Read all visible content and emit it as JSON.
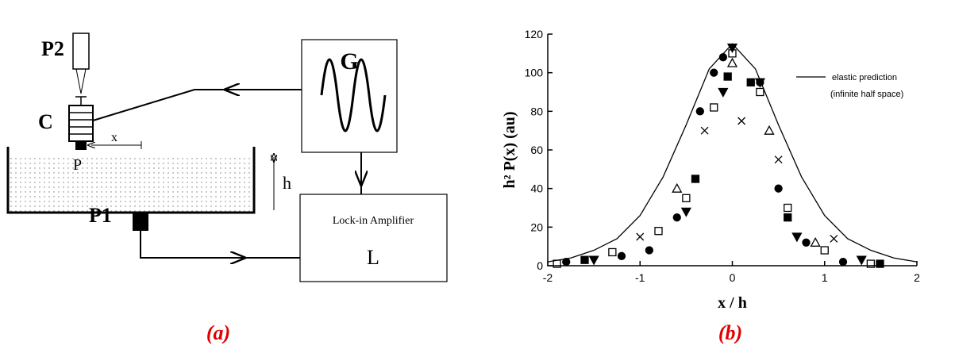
{
  "diagram": {
    "labels": {
      "p2": "P2",
      "c": "C",
      "x": "x",
      "p": "P",
      "h": "h",
      "p1": "P1",
      "g": "G",
      "lockin": "Lock-in Amplifier",
      "l": "L"
    },
    "panel_label": "(a)"
  },
  "chart_data": {
    "type": "scatter",
    "panel_label": "(b)",
    "xlabel": "x / h",
    "ylabel": "h² P(x)  (au)",
    "xlim": [
      -2,
      2
    ],
    "ylim": [
      0,
      120
    ],
    "xticks": [
      -2,
      -1,
      0,
      1,
      2
    ],
    "yticks": [
      0,
      20,
      40,
      60,
      80,
      100,
      120
    ],
    "legend_note": "(infinite half space)",
    "series": [
      {
        "name": "elastic prediction",
        "type": "line",
        "color": "#000000",
        "x": [
          -2,
          -1.75,
          -1.5,
          -1.25,
          -1,
          -0.75,
          -0.5,
          -0.25,
          0,
          0.25,
          0.5,
          0.75,
          1,
          1.25,
          1.5,
          1.75,
          2
        ],
        "values": [
          2,
          4,
          8,
          14,
          26,
          46,
          73,
          102,
          115,
          102,
          73,
          46,
          26,
          14,
          8,
          4,
          2
        ]
      },
      {
        "marker": "circle",
        "filled": true,
        "color": "#000000",
        "x": [
          -1.8,
          -1.2,
          -0.9,
          -0.6,
          -0.35,
          -0.2,
          -0.1,
          0.3,
          0.5,
          0.8,
          1.2
        ],
        "values": [
          2,
          5,
          8,
          25,
          80,
          100,
          108,
          95,
          40,
          12,
          2
        ]
      },
      {
        "marker": "square",
        "filled": false,
        "color": "#000000",
        "x": [
          -1.9,
          -1.3,
          -0.8,
          -0.5,
          -0.2,
          0,
          0.3,
          0.6,
          1,
          1.5
        ],
        "values": [
          1,
          7,
          18,
          35,
          82,
          110,
          90,
          30,
          8,
          1
        ]
      },
      {
        "marker": "triangle-down",
        "filled": true,
        "color": "#000000",
        "x": [
          -1.5,
          -0.5,
          -0.1,
          0,
          0.3,
          0.7,
          1.4
        ],
        "values": [
          3,
          28,
          90,
          113,
          95,
          15,
          3
        ]
      },
      {
        "marker": "triangle-up",
        "filled": false,
        "color": "#000000",
        "x": [
          -0.6,
          0,
          0.4,
          0.9
        ],
        "values": [
          40,
          105,
          70,
          12
        ]
      },
      {
        "marker": "cross",
        "filled": false,
        "color": "#000000",
        "x": [
          -1,
          -0.3,
          0.1,
          0.5,
          1.1
        ],
        "values": [
          15,
          70,
          75,
          55,
          14
        ]
      },
      {
        "marker": "square",
        "filled": true,
        "color": "#000000",
        "x": [
          -1.6,
          -0.4,
          -0.05,
          0.2,
          0.6,
          1.6
        ],
        "values": [
          3,
          45,
          98,
          95,
          25,
          1
        ]
      }
    ]
  }
}
